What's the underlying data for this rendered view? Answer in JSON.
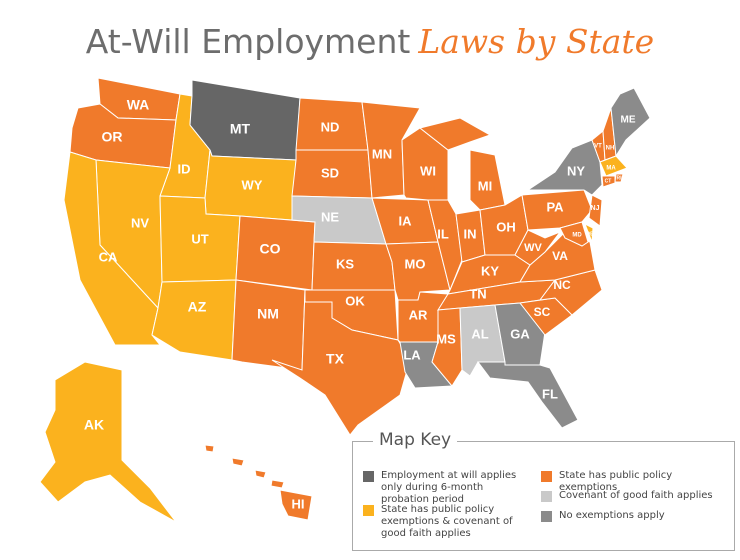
{
  "title": {
    "main": "At-Will Employment",
    "accent": "Laws by State"
  },
  "map": {
    "states": [
      {
        "abbr": "WA",
        "category": 2
      },
      {
        "abbr": "OR",
        "category": 2
      },
      {
        "abbr": "ID",
        "category": 1
      },
      {
        "abbr": "MT",
        "category": 0
      },
      {
        "abbr": "WY",
        "category": 1
      },
      {
        "abbr": "NV",
        "category": 1
      },
      {
        "abbr": "CA",
        "category": 1
      },
      {
        "abbr": "UT",
        "category": 1
      },
      {
        "abbr": "AZ",
        "category": 1
      },
      {
        "abbr": "CO",
        "category": 2
      },
      {
        "abbr": "NM",
        "category": 2
      },
      {
        "abbr": "ND",
        "category": 2
      },
      {
        "abbr": "SD",
        "category": 2
      },
      {
        "abbr": "NE",
        "category": 3
      },
      {
        "abbr": "KS",
        "category": 2
      },
      {
        "abbr": "OK",
        "category": 2
      },
      {
        "abbr": "TX",
        "category": 2
      },
      {
        "abbr": "MN",
        "category": 2
      },
      {
        "abbr": "IA",
        "category": 2
      },
      {
        "abbr": "MO",
        "category": 2
      },
      {
        "abbr": "AR",
        "category": 2
      },
      {
        "abbr": "LA",
        "category": 4
      },
      {
        "abbr": "WI",
        "category": 2
      },
      {
        "abbr": "IL",
        "category": 2
      },
      {
        "abbr": "MI",
        "category": 2
      },
      {
        "abbr": "IN",
        "category": 2
      },
      {
        "abbr": "OH",
        "category": 2
      },
      {
        "abbr": "KY",
        "category": 2
      },
      {
        "abbr": "TN",
        "category": 2
      },
      {
        "abbr": "MS",
        "category": 2
      },
      {
        "abbr": "AL",
        "category": 3
      },
      {
        "abbr": "GA",
        "category": 4
      },
      {
        "abbr": "FL",
        "category": 4
      },
      {
        "abbr": "SC",
        "category": 2
      },
      {
        "abbr": "NC",
        "category": 2
      },
      {
        "abbr": "VA",
        "category": 2
      },
      {
        "abbr": "WV",
        "category": 2
      },
      {
        "abbr": "PA",
        "category": 2
      },
      {
        "abbr": "NY",
        "category": 4
      },
      {
        "abbr": "VT",
        "category": 2
      },
      {
        "abbr": "NH",
        "category": 2
      },
      {
        "abbr": "ME",
        "category": 4
      },
      {
        "abbr": "MA",
        "category": 1
      },
      {
        "abbr": "RI",
        "category": 2
      },
      {
        "abbr": "CT",
        "category": 2
      },
      {
        "abbr": "NJ",
        "category": 2
      },
      {
        "abbr": "DE",
        "category": 1
      },
      {
        "abbr": "MD",
        "category": 2
      },
      {
        "abbr": "AK",
        "category": 1
      },
      {
        "abbr": "HI",
        "category": 2
      }
    ]
  },
  "legend": {
    "title": "Map Key",
    "items": [
      {
        "color": "#666666",
        "label": "Employment at will applies only during 6-month probation period"
      },
      {
        "color": "#fbb21e",
        "label": "State has public policy exemptions & covenant of good faith applies"
      },
      {
        "color": "#f07a2b",
        "label": "State has public policy exemptions"
      },
      {
        "color": "#c9c9c9",
        "label": "Covenant of good faith applies"
      },
      {
        "color": "#8b8b8b",
        "label": "No exemptions apply"
      }
    ]
  }
}
